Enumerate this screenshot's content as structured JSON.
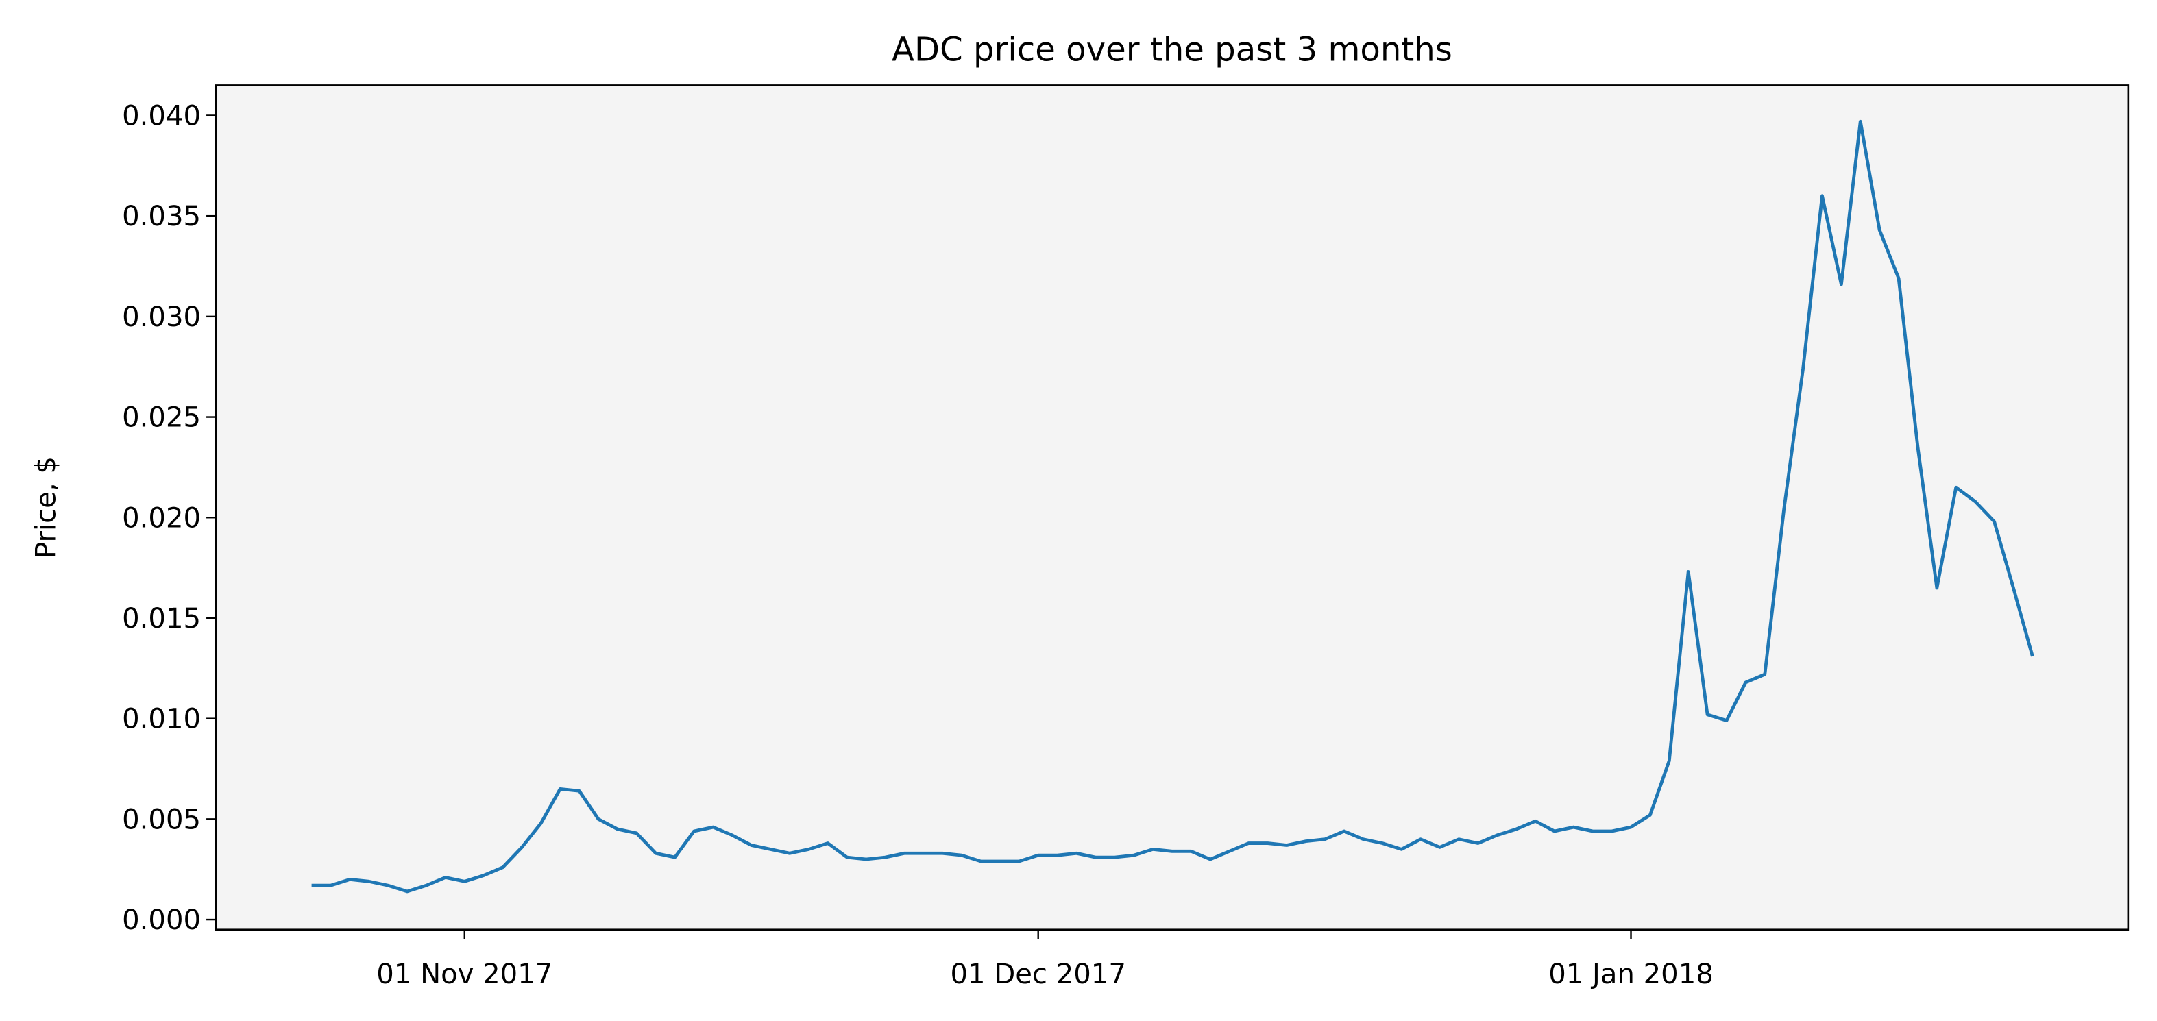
{
  "chart_data": {
    "type": "line",
    "title": "ADC price over the past 3 months",
    "y_label": "Price, $",
    "x": [
      "2017-10-24",
      "2017-10-25",
      "2017-10-26",
      "2017-10-27",
      "2017-10-28",
      "2017-10-29",
      "2017-10-30",
      "2017-10-31",
      "2017-11-01",
      "2017-11-02",
      "2017-11-03",
      "2017-11-04",
      "2017-11-05",
      "2017-11-06",
      "2017-11-07",
      "2017-11-08",
      "2017-11-09",
      "2017-11-10",
      "2017-11-11",
      "2017-11-12",
      "2017-11-13",
      "2017-11-14",
      "2017-11-15",
      "2017-11-16",
      "2017-11-17",
      "2017-11-18",
      "2017-11-19",
      "2017-11-20",
      "2017-11-21",
      "2017-11-22",
      "2017-11-23",
      "2017-11-24",
      "2017-11-25",
      "2017-11-26",
      "2017-11-27",
      "2017-11-28",
      "2017-11-29",
      "2017-11-30",
      "2017-12-01",
      "2017-12-02",
      "2017-12-03",
      "2017-12-04",
      "2017-12-05",
      "2017-12-06",
      "2017-12-07",
      "2017-12-08",
      "2017-12-09",
      "2017-12-10",
      "2017-12-11",
      "2017-12-12",
      "2017-12-13",
      "2017-12-14",
      "2017-12-15",
      "2017-12-16",
      "2017-12-17",
      "2017-12-18",
      "2017-12-19",
      "2017-12-20",
      "2017-12-21",
      "2017-12-22",
      "2017-12-23",
      "2017-12-24",
      "2017-12-25",
      "2017-12-26",
      "2017-12-27",
      "2017-12-28",
      "2017-12-29",
      "2017-12-30",
      "2017-12-31",
      "2018-01-01",
      "2018-01-02",
      "2018-01-03",
      "2018-01-04",
      "2018-01-05",
      "2018-01-06",
      "2018-01-07",
      "2018-01-08",
      "2018-01-09",
      "2018-01-10",
      "2018-01-11",
      "2018-01-12",
      "2018-01-13",
      "2018-01-14",
      "2018-01-15",
      "2018-01-16",
      "2018-01-17",
      "2018-01-18",
      "2018-01-19",
      "2018-01-20",
      "2018-01-21",
      "2018-01-22"
    ],
    "series": [
      {
        "color": "#1f77b4",
        "values": [
          0.0017,
          0.0017,
          0.002,
          0.0019,
          0.0017,
          0.0014,
          0.0017,
          0.0021,
          0.0019,
          0.0022,
          0.0026,
          0.0036,
          0.0048,
          0.0065,
          0.0064,
          0.005,
          0.0045,
          0.0043,
          0.0033,
          0.0031,
          0.0044,
          0.0046,
          0.0042,
          0.0037,
          0.0035,
          0.0033,
          0.0035,
          0.0038,
          0.0031,
          0.003,
          0.0031,
          0.0033,
          0.0033,
          0.0033,
          0.0032,
          0.0029,
          0.0029,
          0.0029,
          0.0032,
          0.0032,
          0.0033,
          0.0031,
          0.0031,
          0.0032,
          0.0035,
          0.0034,
          0.0034,
          0.003,
          0.0034,
          0.0038,
          0.0038,
          0.0037,
          0.0039,
          0.004,
          0.0044,
          0.004,
          0.0038,
          0.0035,
          0.004,
          0.0036,
          0.004,
          0.0038,
          0.0042,
          0.0045,
          0.0049,
          0.0044,
          0.0046,
          0.0044,
          0.0044,
          0.0046,
          0.0052,
          0.0079,
          0.0173,
          0.0102,
          0.0099,
          0.0118,
          0.0122,
          0.0204,
          0.0274,
          0.036,
          0.0316,
          0.0397,
          0.0343,
          0.0319,
          0.0235,
          0.0165,
          0.0215,
          0.0208,
          0.0198,
          0.0165,
          0.0131
        ]
      }
    ],
    "xlim": [
      "2017-10-19",
      "2018-01-27"
    ],
    "xticks": [
      {
        "value": "2017-11-01",
        "label": "01 Nov 2017"
      },
      {
        "value": "2017-12-01",
        "label": "01 Dec 2017"
      },
      {
        "value": "2018-01-01",
        "label": "01 Jan 2018"
      }
    ],
    "ylim": [
      -0.0005,
      0.0415
    ],
    "yticks": [
      {
        "value": 0,
        "label": "0.000"
      },
      {
        "value": 0.005,
        "label": "0.005"
      },
      {
        "value": 0.01,
        "label": "0.010"
      },
      {
        "value": 0.015,
        "label": "0.015"
      },
      {
        "value": 0.02,
        "label": "0.020"
      },
      {
        "value": 0.025,
        "label": "0.025"
      },
      {
        "value": 0.03,
        "label": "0.030"
      },
      {
        "value": 0.035,
        "label": "0.035"
      },
      {
        "value": 0.04,
        "label": "0.040"
      }
    ],
    "grid": false,
    "background": "#f4f4f4"
  }
}
